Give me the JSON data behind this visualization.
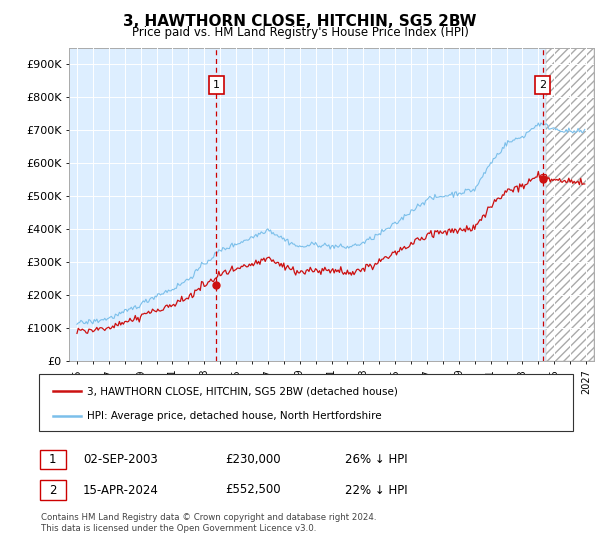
{
  "title": "3, HAWTHORN CLOSE, HITCHIN, SG5 2BW",
  "subtitle": "Price paid vs. HM Land Registry's House Price Index (HPI)",
  "legend_line1": "3, HAWTHORN CLOSE, HITCHIN, SG5 2BW (detached house)",
  "legend_line2": "HPI: Average price, detached house, North Hertfordshire",
  "annotation1_label": "1",
  "annotation1_date": "02-SEP-2003",
  "annotation1_price": "£230,000",
  "annotation1_hpi": "26% ↓ HPI",
  "annotation1_year": 2003.75,
  "annotation1_value": 230000,
  "annotation2_label": "2",
  "annotation2_date": "15-APR-2024",
  "annotation2_price": "£552,500",
  "annotation2_hpi": "22% ↓ HPI",
  "annotation2_year": 2024.29,
  "annotation2_value": 552500,
  "footer1": "Contains HM Land Registry data © Crown copyright and database right 2024.",
  "footer2": "This data is licensed under the Open Government Licence v3.0.",
  "hpi_color": "#7bbfea",
  "price_color": "#cc1111",
  "vline_color": "#cc0000",
  "chart_bg_color": "#ddeeff",
  "background_color": "#ffffff",
  "grid_color": "#ffffff",
  "ylim": [
    0,
    950000
  ],
  "yticks": [
    0,
    100000,
    200000,
    300000,
    400000,
    500000,
    600000,
    700000,
    800000,
    900000
  ],
  "ytick_labels": [
    "£0",
    "£100K",
    "£200K",
    "£300K",
    "£400K",
    "£500K",
    "£600K",
    "£700K",
    "£800K",
    "£900K"
  ],
  "xlim_start": 1994.5,
  "xlim_end": 2027.5,
  "hatch_start": 2024.5
}
